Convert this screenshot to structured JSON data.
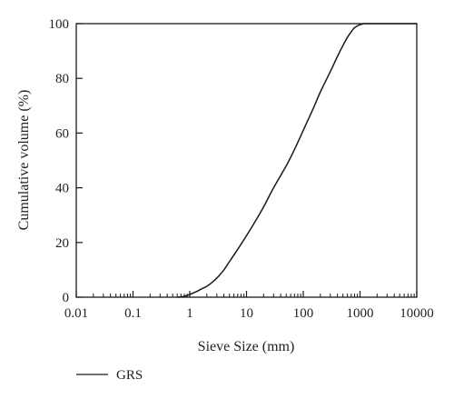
{
  "chart_data": {
    "type": "line",
    "title": "",
    "xlabel": "Sieve Size (mm)",
    "ylabel": "Cumulative volume (%)",
    "xscale": "log",
    "xlim": [
      0.01,
      10000
    ],
    "ylim": [
      0,
      100
    ],
    "x_ticks": [
      0.01,
      0.1,
      1,
      10,
      100,
      1000,
      10000
    ],
    "x_tick_labels": [
      "0.01",
      "0.1",
      "1",
      "10",
      "100",
      "1000",
      "10000"
    ],
    "y_ticks": [
      0,
      20,
      40,
      60,
      80,
      100
    ],
    "y_tick_labels": [
      "0",
      "20",
      "40",
      "60",
      "80",
      "100"
    ],
    "grid": false,
    "legend_position": "bottom-left",
    "series": [
      {
        "name": "GRS",
        "color": "#1a1a1a",
        "x": [
          0.6,
          0.8,
          1.0,
          1.3,
          1.6,
          2,
          2.5,
          3,
          4,
          5,
          7,
          10,
          15,
          20,
          30,
          50,
          70,
          100,
          150,
          200,
          300,
          400,
          500,
          600,
          700,
          800,
          1000,
          1200,
          1400,
          2000,
          10000
        ],
        "y": [
          0,
          0.3,
          1.0,
          2.0,
          3.0,
          4.0,
          5.5,
          7.0,
          10.0,
          13.0,
          17.5,
          22.5,
          28.5,
          33.0,
          40.0,
          48.0,
          54.0,
          61.0,
          69.0,
          75.0,
          82.5,
          88.0,
          92.0,
          95.0,
          97.0,
          98.5,
          99.6,
          100,
          100,
          100,
          100
        ]
      }
    ]
  }
}
